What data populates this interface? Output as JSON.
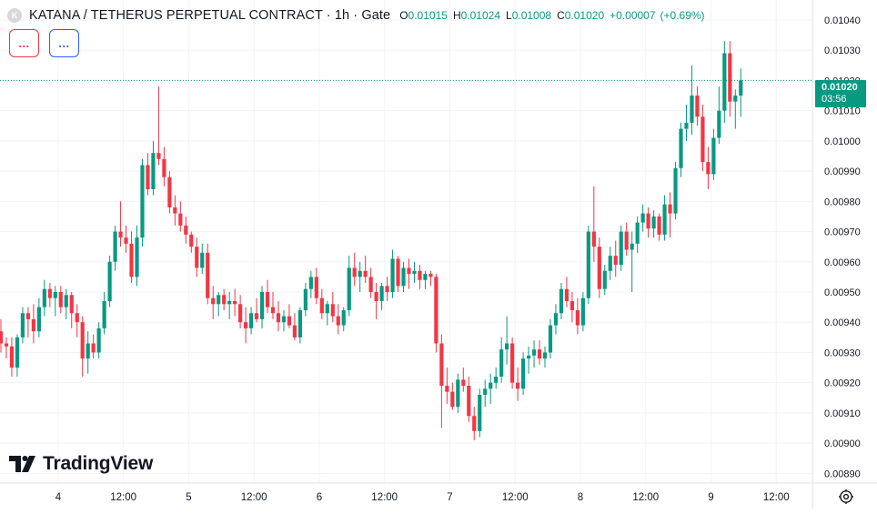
{
  "header": {
    "title": "KATANA / TETHERUS PERPETUAL CONTRACT · 1h · Gate",
    "logo_letter": "K",
    "open_label": "O",
    "open": "0.01015",
    "high_label": "H",
    "high": "0.01024",
    "low_label": "L",
    "low": "0.01008",
    "close_label": "C",
    "close": "0.01020",
    "change": "+0.00007",
    "change_pct": "(+0.69%)"
  },
  "indicator_buttons": [
    {
      "label": "...",
      "color": "#f23645"
    },
    {
      "label": "...",
      "color": "#2962ff"
    }
  ],
  "price_tag": {
    "price": "0.01020",
    "countdown": "03:56",
    "color": "#089981"
  },
  "brand": {
    "name": "TradingView",
    "icon": "tradingview-logo-icon"
  },
  "settings_icon": "gear-icon",
  "colors": {
    "up": "#089981",
    "down": "#f23645",
    "grid": "#f0f3fa",
    "text": "#131722"
  },
  "chart_data": {
    "type": "candlestick",
    "interval": "1h",
    "y_ticks": [
      "0.01040",
      "0.01030",
      "0.01020",
      "0.01010",
      "0.01000",
      "0.00990",
      "0.00980",
      "0.00970",
      "0.00960",
      "0.00950",
      "0.00940",
      "0.00930",
      "0.00920",
      "0.00910",
      "0.00900",
      "0.00890"
    ],
    "ylim": [
      0.008868,
      0.010433
    ],
    "last_price": 0.0102,
    "x_tick_labels": [
      {
        "label": "4",
        "bar": 5
      },
      {
        "label": "12:00",
        "bar": 17
      },
      {
        "label": "5",
        "bar": 29
      },
      {
        "label": "12:00",
        "bar": 41
      },
      {
        "label": "6",
        "bar": 53
      },
      {
        "label": "12:00",
        "bar": 65
      },
      {
        "label": "7",
        "bar": 77
      },
      {
        "label": "12:00",
        "bar": 89
      },
      {
        "label": "8",
        "bar": 101
      },
      {
        "label": "12:00",
        "bar": 113
      },
      {
        "label": "9",
        "bar": 125
      },
      {
        "label": "12:00",
        "bar": 137
      }
    ],
    "candles": [
      [
        0.00937,
        0.00941,
        0.0093,
        0.00933
      ],
      [
        0.00933,
        0.00935,
        0.00928,
        0.00932
      ],
      [
        0.00932,
        0.00935,
        0.00922,
        0.00925
      ],
      [
        0.00925,
        0.00936,
        0.00922,
        0.00935
      ],
      [
        0.00935,
        0.00945,
        0.00933,
        0.00943
      ],
      [
        0.00943,
        0.00945,
        0.00935,
        0.00941
      ],
      [
        0.00941,
        0.00946,
        0.00933,
        0.00937
      ],
      [
        0.00937,
        0.00948,
        0.00935,
        0.00945
      ],
      [
        0.00945,
        0.00954,
        0.00942,
        0.00951
      ],
      [
        0.00951,
        0.00953,
        0.00945,
        0.00948
      ],
      [
        0.00948,
        0.00952,
        0.00942,
        0.0095
      ],
      [
        0.0095,
        0.00952,
        0.00943,
        0.00945
      ],
      [
        0.00945,
        0.00951,
        0.00941,
        0.00949
      ],
      [
        0.00949,
        0.0095,
        0.00938,
        0.00943
      ],
      [
        0.00943,
        0.00946,
        0.00935,
        0.0094
      ],
      [
        0.0094,
        0.00942,
        0.00922,
        0.00928
      ],
      [
        0.00928,
        0.00937,
        0.00923,
        0.00933
      ],
      [
        0.00933,
        0.00936,
        0.00928,
        0.0093
      ],
      [
        0.0093,
        0.0094,
        0.00928,
        0.00938
      ],
      [
        0.00938,
        0.0095,
        0.00936,
        0.00947
      ],
      [
        0.00947,
        0.00962,
        0.00945,
        0.0096
      ],
      [
        0.0096,
        0.00972,
        0.00957,
        0.0097
      ],
      [
        0.0097,
        0.0098,
        0.00965,
        0.00968
      ],
      [
        0.00968,
        0.00972,
        0.00963,
        0.00966
      ],
      [
        0.00966,
        0.0097,
        0.00953,
        0.00955
      ],
      [
        0.00955,
        0.00972,
        0.00952,
        0.00968
      ],
      [
        0.00968,
        0.00994,
        0.00965,
        0.00992
      ],
      [
        0.00992,
        0.00996,
        0.00982,
        0.00984
      ],
      [
        0.00984,
        0.01,
        0.00982,
        0.00996
      ],
      [
        0.00996,
        0.01018,
        0.00992,
        0.00994
      ],
      [
        0.00994,
        0.00998,
        0.00985,
        0.00988
      ],
      [
        0.00988,
        0.0099,
        0.00976,
        0.00978
      ],
      [
        0.00978,
        0.00982,
        0.00972,
        0.00976
      ],
      [
        0.00976,
        0.0098,
        0.0097,
        0.00972
      ],
      [
        0.00972,
        0.00975,
        0.00966,
        0.00969
      ],
      [
        0.00969,
        0.0097,
        0.00963,
        0.00965
      ],
      [
        0.00965,
        0.00968,
        0.00955,
        0.00958
      ],
      [
        0.00958,
        0.00966,
        0.00956,
        0.00963
      ],
      [
        0.00963,
        0.00966,
        0.00946,
        0.00948
      ],
      [
        0.00948,
        0.00952,
        0.00941,
        0.00946
      ],
      [
        0.00946,
        0.0095,
        0.00942,
        0.00949
      ],
      [
        0.00949,
        0.00951,
        0.00944,
        0.00946
      ],
      [
        0.00946,
        0.0095,
        0.00941,
        0.00947
      ],
      [
        0.00947,
        0.00951,
        0.00942,
        0.00946
      ],
      [
        0.00946,
        0.00949,
        0.00938,
        0.0094
      ],
      [
        0.0094,
        0.00945,
        0.00933,
        0.00938
      ],
      [
        0.00938,
        0.00945,
        0.00936,
        0.00943
      ],
      [
        0.00943,
        0.00948,
        0.0094,
        0.00941
      ],
      [
        0.00941,
        0.00952,
        0.00938,
        0.0095
      ],
      [
        0.0095,
        0.00954,
        0.00943,
        0.00945
      ],
      [
        0.00945,
        0.0095,
        0.00941,
        0.00943
      ],
      [
        0.00943,
        0.00947,
        0.00937,
        0.0094
      ],
      [
        0.0094,
        0.00944,
        0.00937,
        0.00942
      ],
      [
        0.00942,
        0.00946,
        0.00938,
        0.00939
      ],
      [
        0.00939,
        0.00943,
        0.00934,
        0.00935
      ],
      [
        0.00935,
        0.00945,
        0.00933,
        0.00944
      ],
      [
        0.00944,
        0.00953,
        0.00942,
        0.00951
      ],
      [
        0.00951,
        0.00957,
        0.00948,
        0.00955
      ],
      [
        0.00955,
        0.00958,
        0.00946,
        0.00948
      ],
      [
        0.00948,
        0.00951,
        0.00941,
        0.00943
      ],
      [
        0.00943,
        0.00947,
        0.00939,
        0.00946
      ],
      [
        0.00946,
        0.0095,
        0.0094,
        0.00942
      ],
      [
        0.00942,
        0.00946,
        0.00936,
        0.00939
      ],
      [
        0.00939,
        0.00945,
        0.00937,
        0.00944
      ],
      [
        0.00944,
        0.00962,
        0.00942,
        0.00958
      ],
      [
        0.00958,
        0.00963,
        0.00952,
        0.00955
      ],
      [
        0.00955,
        0.0096,
        0.0095,
        0.00957
      ],
      [
        0.00957,
        0.00962,
        0.00953,
        0.00955
      ],
      [
        0.00955,
        0.00958,
        0.00948,
        0.0095
      ],
      [
        0.0095,
        0.00953,
        0.00941,
        0.00947
      ],
      [
        0.00947,
        0.00953,
        0.00944,
        0.00952
      ],
      [
        0.00952,
        0.00955,
        0.00947,
        0.0095
      ],
      [
        0.0095,
        0.00964,
        0.00948,
        0.00961
      ],
      [
        0.00961,
        0.00962,
        0.0095,
        0.00952
      ],
      [
        0.00952,
        0.0096,
        0.0095,
        0.00958
      ],
      [
        0.00958,
        0.00961,
        0.00951,
        0.00956
      ],
      [
        0.00956,
        0.0096,
        0.00953,
        0.00957
      ],
      [
        0.00957,
        0.00959,
        0.00951,
        0.00954
      ],
      [
        0.00954,
        0.00957,
        0.00951,
        0.00956
      ],
      [
        0.00956,
        0.00957,
        0.00952,
        0.00955
      ],
      [
        0.00955,
        0.00956,
        0.0093,
        0.00933
      ],
      [
        0.00933,
        0.00936,
        0.00905,
        0.00919
      ],
      [
        0.00919,
        0.00925,
        0.00913,
        0.00917
      ],
      [
        0.00917,
        0.0092,
        0.00911,
        0.00912
      ],
      [
        0.00912,
        0.00923,
        0.0091,
        0.00921
      ],
      [
        0.00921,
        0.00925,
        0.00917,
        0.00919
      ],
      [
        0.00919,
        0.00922,
        0.00907,
        0.00909
      ],
      [
        0.00909,
        0.00912,
        0.00901,
        0.00904
      ],
      [
        0.00904,
        0.00918,
        0.00902,
        0.00916
      ],
      [
        0.00916,
        0.00921,
        0.00912,
        0.00918
      ],
      [
        0.00918,
        0.00923,
        0.00913,
        0.0092
      ],
      [
        0.0092,
        0.00925,
        0.00918,
        0.00922
      ],
      [
        0.00922,
        0.00935,
        0.0092,
        0.00931
      ],
      [
        0.00931,
        0.00942,
        0.00926,
        0.00933
      ],
      [
        0.00933,
        0.00935,
        0.00918,
        0.0092
      ],
      [
        0.0092,
        0.00925,
        0.00914,
        0.00918
      ],
      [
        0.00918,
        0.0093,
        0.00916,
        0.00928
      ],
      [
        0.00928,
        0.00932,
        0.00923,
        0.00929
      ],
      [
        0.00929,
        0.00934,
        0.00925,
        0.00931
      ],
      [
        0.00931,
        0.00934,
        0.00926,
        0.00928
      ],
      [
        0.00928,
        0.00932,
        0.00925,
        0.0093
      ],
      [
        0.0093,
        0.00941,
        0.00928,
        0.00939
      ],
      [
        0.00939,
        0.00946,
        0.00936,
        0.00943
      ],
      [
        0.00943,
        0.00953,
        0.00941,
        0.00951
      ],
      [
        0.00951,
        0.00955,
        0.00945,
        0.00947
      ],
      [
        0.00947,
        0.0095,
        0.0094,
        0.00944
      ],
      [
        0.00944,
        0.00948,
        0.00936,
        0.00939
      ],
      [
        0.00939,
        0.0095,
        0.00937,
        0.00948
      ],
      [
        0.00948,
        0.00972,
        0.00946,
        0.0097
      ],
      [
        0.0097,
        0.00985,
        0.0096,
        0.00965
      ],
      [
        0.00965,
        0.00968,
        0.00948,
        0.00951
      ],
      [
        0.00951,
        0.00959,
        0.00949,
        0.00957
      ],
      [
        0.00957,
        0.00965,
        0.00954,
        0.00962
      ],
      [
        0.00962,
        0.00967,
        0.00955,
        0.00959
      ],
      [
        0.00959,
        0.00972,
        0.00957,
        0.0097
      ],
      [
        0.0097,
        0.00973,
        0.00962,
        0.00964
      ],
      [
        0.00964,
        0.0097,
        0.0095,
        0.00966
      ],
      [
        0.00966,
        0.00975,
        0.00963,
        0.00973
      ],
      [
        0.00973,
        0.00979,
        0.0097,
        0.00976
      ],
      [
        0.00976,
        0.00978,
        0.00968,
        0.00971
      ],
      [
        0.00971,
        0.00977,
        0.00968,
        0.00975
      ],
      [
        0.00975,
        0.00976,
        0.00967,
        0.00969
      ],
      [
        0.00969,
        0.00982,
        0.00967,
        0.00979
      ],
      [
        0.00979,
        0.00983,
        0.00968,
        0.00976
      ],
      [
        0.00976,
        0.00993,
        0.00974,
        0.00991
      ],
      [
        0.00991,
        0.01006,
        0.00988,
        0.01004
      ],
      [
        0.01004,
        0.01012,
        0.01,
        0.01006
      ],
      [
        0.01006,
        0.01025,
        0.01002,
        0.01015
      ],
      [
        0.01015,
        0.01018,
        0.01005,
        0.01008
      ],
      [
        0.01008,
        0.01012,
        0.0099,
        0.00993
      ],
      [
        0.00993,
        0.00998,
        0.00984,
        0.00989
      ],
      [
        0.00989,
        0.01004,
        0.00987,
        0.01001
      ],
      [
        0.01001,
        0.01018,
        0.00999,
        0.0101
      ],
      [
        0.0101,
        0.01033,
        0.01006,
        0.01029
      ],
      [
        0.01029,
        0.01033,
        0.01008,
        0.01013
      ],
      [
        0.01013,
        0.01017,
        0.01004,
        0.01015
      ],
      [
        0.01015,
        0.01024,
        0.01008,
        0.0102
      ]
    ]
  }
}
